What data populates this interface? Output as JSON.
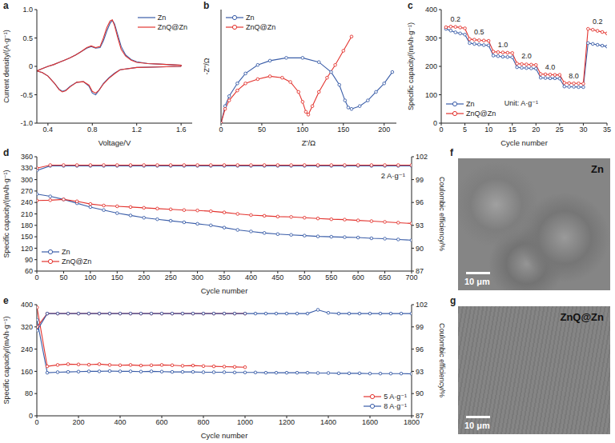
{
  "chart_data": [
    {
      "panel": "a",
      "type": "line",
      "xlabel": "Voltage/V",
      "ylabel": "Current density/(A·g⁻¹)",
      "xlim": [
        0.3,
        1.7
      ],
      "xticks": [
        0.4,
        0.8,
        1.2,
        1.6
      ],
      "ylim": [
        -1,
        1
      ],
      "yticks": [
        {
          "value": -1,
          "label": "-1.0"
        },
        -0.5,
        0,
        0.5,
        {
          "value": 1,
          "label": "1.0"
        }
      ],
      "legend": "upper right",
      "series": [
        {
          "name": "Zn",
          "color": "#3a5da8",
          "x": [
            1.6,
            1.4,
            1.2,
            1.05,
            1.0,
            0.95,
            0.9,
            0.86,
            0.83,
            0.8,
            0.77,
            0.72,
            0.66,
            0.6,
            0.56,
            0.53,
            0.5,
            0.46,
            0.4,
            0.35,
            0.3,
            0.3,
            0.35,
            0.4,
            0.45,
            0.5,
            0.55,
            0.6,
            0.65,
            0.7,
            0.75,
            0.79,
            0.83,
            0.87,
            0.9,
            0.93,
            0.96,
            0.98,
            1.0,
            1.03,
            1.06,
            1.1,
            1.15,
            1.2,
            1.3,
            1.4,
            1.5,
            1.6,
            1.6
          ],
          "values": [
            0.0,
            -0.01,
            -0.02,
            -0.06,
            -0.12,
            -0.2,
            -0.3,
            -0.42,
            -0.5,
            -0.47,
            -0.35,
            -0.27,
            -0.28,
            -0.35,
            -0.42,
            -0.44,
            -0.4,
            -0.3,
            -0.17,
            -0.11,
            -0.08,
            -0.08,
            -0.04,
            0.0,
            0.03,
            0.07,
            0.11,
            0.15,
            0.2,
            0.26,
            0.32,
            0.35,
            0.32,
            0.33,
            0.45,
            0.62,
            0.76,
            0.81,
            0.75,
            0.55,
            0.35,
            0.2,
            0.12,
            0.08,
            0.05,
            0.04,
            0.03,
            0.02,
            0.0
          ]
        },
        {
          "name": "ZnQ@Zn",
          "color": "#e3342f",
          "x": [
            1.6,
            1.4,
            1.2,
            1.05,
            1.0,
            0.95,
            0.9,
            0.86,
            0.83,
            0.8,
            0.77,
            0.72,
            0.66,
            0.6,
            0.56,
            0.53,
            0.5,
            0.46,
            0.4,
            0.35,
            0.3,
            0.3,
            0.35,
            0.4,
            0.45,
            0.5,
            0.55,
            0.6,
            0.65,
            0.7,
            0.75,
            0.79,
            0.83,
            0.87,
            0.9,
            0.93,
            0.96,
            0.98,
            1.0,
            1.03,
            1.06,
            1.1,
            1.15,
            1.2,
            1.3,
            1.4,
            1.5,
            1.6,
            1.6
          ],
          "values": [
            0.0,
            -0.01,
            -0.02,
            -0.06,
            -0.13,
            -0.21,
            -0.31,
            -0.42,
            -0.47,
            -0.44,
            -0.33,
            -0.27,
            -0.28,
            -0.36,
            -0.43,
            -0.45,
            -0.41,
            -0.3,
            -0.17,
            -0.11,
            -0.08,
            -0.08,
            -0.04,
            0.0,
            0.03,
            0.07,
            0.11,
            0.15,
            0.2,
            0.26,
            0.33,
            0.36,
            0.33,
            0.35,
            0.5,
            0.68,
            0.8,
            0.82,
            0.72,
            0.5,
            0.3,
            0.18,
            0.11,
            0.07,
            0.05,
            0.04,
            0.03,
            0.02,
            0.0
          ]
        }
      ]
    },
    {
      "panel": "b",
      "type": "line",
      "marker": "circle",
      "xlabel": "Z'/Ω",
      "ylabel": "-Z''/Ω",
      "xlim": [
        0,
        215
      ],
      "xticks": [
        0,
        50,
        100,
        150,
        200
      ],
      "ylim": [
        0,
        80
      ],
      "tick_labels": "x",
      "legend": "upper left",
      "series": [
        {
          "name": "Zn",
          "color": "#3a5da8",
          "x": [
            0,
            5,
            10,
            20,
            30,
            45,
            60,
            80,
            100,
            120,
            135,
            145,
            152,
            156,
            160,
            170,
            180,
            190,
            200,
            210
          ],
          "values": [
            0,
            12,
            19,
            28,
            35,
            41,
            44,
            46,
            46,
            43,
            36,
            27,
            16,
            11,
            10,
            12,
            16,
            22,
            28,
            36
          ]
        },
        {
          "name": "ZnQ@Zn",
          "color": "#e3342f",
          "x": [
            0,
            5,
            10,
            20,
            30,
            45,
            60,
            75,
            85,
            95,
            100,
            104,
            107,
            112,
            120,
            130,
            140,
            150,
            160
          ],
          "values": [
            0,
            10,
            16,
            23,
            28,
            31,
            33,
            32,
            29,
            22,
            15,
            8,
            6,
            12,
            22,
            32,
            41,
            51,
            61
          ]
        }
      ]
    },
    {
      "panel": "c",
      "type": "line",
      "marker": "circle",
      "xlabel": "Cycle number",
      "ylabel": "Specific capacity/(mAh·g⁻¹)",
      "xlim": [
        0,
        35
      ],
      "xticks": [
        0,
        5,
        10,
        15,
        20,
        25,
        30,
        35
      ],
      "ylim": [
        0,
        400
      ],
      "yticks": [
        0,
        100,
        200,
        300,
        400
      ],
      "legend": "lower left",
      "rate_labels": [
        "0.2",
        "0.5",
        "1.0",
        "2.0",
        "4.0",
        "8.0",
        "0.2"
      ],
      "unit_label": "Unit: A·g⁻¹",
      "series": [
        {
          "name": "Zn",
          "color": "#3a5da8",
          "x": [
            1,
            2,
            3,
            4,
            5,
            6,
            7,
            8,
            9,
            10,
            11,
            12,
            13,
            14,
            15,
            16,
            17,
            18,
            19,
            20,
            21,
            22,
            23,
            24,
            25,
            26,
            27,
            28,
            29,
            30,
            31,
            32,
            33,
            34,
            35
          ],
          "values": [
            332,
            326,
            320,
            316,
            312,
            282,
            279,
            277,
            275,
            274,
            238,
            236,
            234,
            233,
            232,
            197,
            195,
            194,
            193,
            192,
            160,
            159,
            158,
            158,
            157,
            129,
            128,
            128,
            127,
            127,
            282,
            279,
            276,
            273,
            270
          ]
        },
        {
          "name": "ZnQ@Zn",
          "color": "#e3342f",
          "x": [
            1,
            2,
            3,
            4,
            5,
            6,
            7,
            8,
            9,
            10,
            11,
            12,
            13,
            14,
            15,
            16,
            17,
            18,
            19,
            20,
            21,
            22,
            23,
            24,
            25,
            26,
            27,
            28,
            29,
            30,
            31,
            32,
            33,
            34,
            35
          ],
          "values": [
            338,
            340,
            339,
            337,
            334,
            296,
            294,
            292,
            291,
            290,
            252,
            250,
            249,
            248,
            247,
            210,
            208,
            207,
            206,
            205,
            173,
            172,
            171,
            170,
            170,
            142,
            141,
            140,
            140,
            139,
            332,
            329,
            325,
            321,
            316
          ]
        }
      ]
    },
    {
      "panel": "d",
      "type": "line",
      "marker": "circle",
      "xlabel": "Cycle number",
      "ylabel": "Specific capacity/(mAh·g⁻¹)",
      "y2label": "Coulombic efficiency/%",
      "xlim": [
        0,
        700
      ],
      "xticks": [
        0,
        50,
        100,
        150,
        200,
        250,
        300,
        350,
        400,
        450,
        500,
        550,
        600,
        650,
        700
      ],
      "ylim": [
        60,
        360
      ],
      "yticks": [
        60,
        90,
        120,
        150,
        180,
        210,
        240,
        270,
        300,
        330,
        360
      ],
      "y2lim": [
        87,
        102
      ],
      "y2ticks": [
        87,
        90,
        93,
        96,
        99,
        102
      ],
      "legend": "lower left",
      "annotation": "2 A·g⁻¹",
      "series": [
        {
          "name": "Zn",
          "color": "#3a5da8",
          "x": [
            0,
            25,
            50,
            75,
            100,
            125,
            150,
            175,
            200,
            225,
            250,
            275,
            300,
            325,
            350,
            375,
            400,
            425,
            450,
            475,
            500,
            525,
            550,
            575,
            600,
            625,
            650,
            675,
            700
          ],
          "values": [
            262,
            256,
            248,
            238,
            228,
            220,
            212,
            206,
            200,
            196,
            192,
            188,
            184,
            180,
            174,
            168,
            164,
            160,
            157,
            155,
            153,
            151,
            150,
            149,
            148,
            146,
            145,
            143,
            141
          ],
          "coulombic_efficiency": [
            100.2,
            100.8,
            100.8,
            100.8,
            100.8,
            100.8,
            100.8,
            100.8,
            100.8,
            100.8,
            100.8,
            100.8,
            100.8,
            100.8,
            100.8,
            100.8,
            100.8,
            100.8,
            100.8,
            100.8,
            100.8,
            100.8,
            100.8,
            100.8,
            100.8,
            100.8,
            100.8,
            100.8,
            100.8
          ]
        },
        {
          "name": "ZnQ@Zn",
          "color": "#e3342f",
          "x": [
            0,
            25,
            50,
            75,
            100,
            125,
            150,
            175,
            200,
            225,
            250,
            275,
            300,
            325,
            350,
            375,
            400,
            425,
            450,
            475,
            500,
            525,
            550,
            575,
            600,
            625,
            650,
            675,
            700
          ],
          "values": [
            245,
            246,
            248,
            243,
            236,
            232,
            230,
            228,
            226,
            224,
            222,
            220,
            219,
            217,
            214,
            210,
            207,
            205,
            203,
            202,
            200,
            198,
            196,
            195,
            193,
            191,
            189,
            187,
            185
          ],
          "coulombic_efficiency": [
            100.5,
            100.9,
            100.9,
            100.9,
            100.9,
            100.9,
            100.9,
            100.9,
            100.9,
            100.9,
            100.9,
            100.9,
            100.9,
            100.9,
            100.9,
            100.9,
            100.9,
            100.9,
            100.9,
            100.9,
            100.9,
            100.9,
            100.9,
            100.9,
            100.9,
            100.9,
            100.9,
            100.9,
            100.9
          ]
        }
      ]
    },
    {
      "panel": "e",
      "type": "line",
      "marker": "circle",
      "xlabel": "Cycle number",
      "ylabel": "Specific capacity/(mAh·g⁻¹)",
      "y2label": "Coulombic efficiency/%",
      "xlim": [
        0,
        1800
      ],
      "xticks": [
        0,
        200,
        400,
        600,
        800,
        1000,
        1200,
        1400,
        1600,
        1800
      ],
      "ylim": [
        0,
        400
      ],
      "yticks": [
        0,
        80,
        160,
        240,
        320,
        400
      ],
      "y2lim": [
        87,
        102
      ],
      "y2ticks": [
        87,
        90,
        93,
        96,
        99,
        102
      ],
      "legend": "lower right",
      "series": [
        {
          "name": "5 A·g⁻¹",
          "color": "#e3342f",
          "x": [
            1,
            50,
            100,
            150,
            200,
            250,
            300,
            350,
            400,
            450,
            500,
            550,
            600,
            650,
            700,
            750,
            800,
            850,
            900,
            950,
            1000
          ],
          "values": [
            390,
            178,
            183,
            186,
            185,
            184,
            186,
            183,
            182,
            183,
            181,
            182,
            183,
            182,
            180,
            181,
            179,
            178,
            177,
            176,
            175
          ],
          "coulombic_efficiency": [
            99.0,
            100.8,
            100.8,
            100.8,
            100.8,
            100.8,
            100.8,
            100.8,
            100.8,
            100.8,
            100.8,
            100.8,
            100.8,
            100.8,
            100.8,
            100.8,
            100.8,
            100.8,
            100.8,
            100.8,
            100.8
          ]
        },
        {
          "name": "8 A·g⁻¹",
          "color": "#3a5da8",
          "x": [
            1,
            50,
            100,
            150,
            200,
            250,
            300,
            350,
            400,
            450,
            500,
            550,
            600,
            650,
            700,
            750,
            800,
            850,
            900,
            950,
            1000,
            1050,
            1100,
            1150,
            1200,
            1250,
            1300,
            1350,
            1400,
            1450,
            1500,
            1550,
            1600,
            1650,
            1700,
            1750,
            1800
          ],
          "values": [
            345,
            155,
            157,
            158,
            159,
            160,
            160,
            161,
            160,
            160,
            159,
            160,
            159,
            158,
            158,
            158,
            157,
            157,
            157,
            156,
            156,
            156,
            155,
            155,
            155,
            155,
            155,
            154,
            154,
            153,
            153,
            153,
            152,
            152,
            152,
            152,
            151
          ],
          "coulombic_efficiency": [
            98.5,
            100.8,
            100.8,
            100.8,
            100.8,
            100.8,
            100.8,
            100.8,
            100.8,
            100.8,
            100.8,
            100.8,
            100.8,
            100.8,
            100.8,
            100.8,
            100.8,
            100.8,
            100.8,
            100.8,
            100.8,
            100.8,
            100.8,
            100.8,
            100.8,
            100.8,
            100.8,
            101.3,
            100.9,
            100.8,
            100.8,
            100.8,
            100.8,
            100.8,
            100.8,
            100.8,
            100.8
          ]
        }
      ]
    }
  ],
  "images": [
    {
      "panel": "f",
      "label": "Zn",
      "scale_bar": "10 μm"
    },
    {
      "panel": "g",
      "label": "ZnQ@Zn",
      "scale_bar": "10 μm"
    }
  ]
}
